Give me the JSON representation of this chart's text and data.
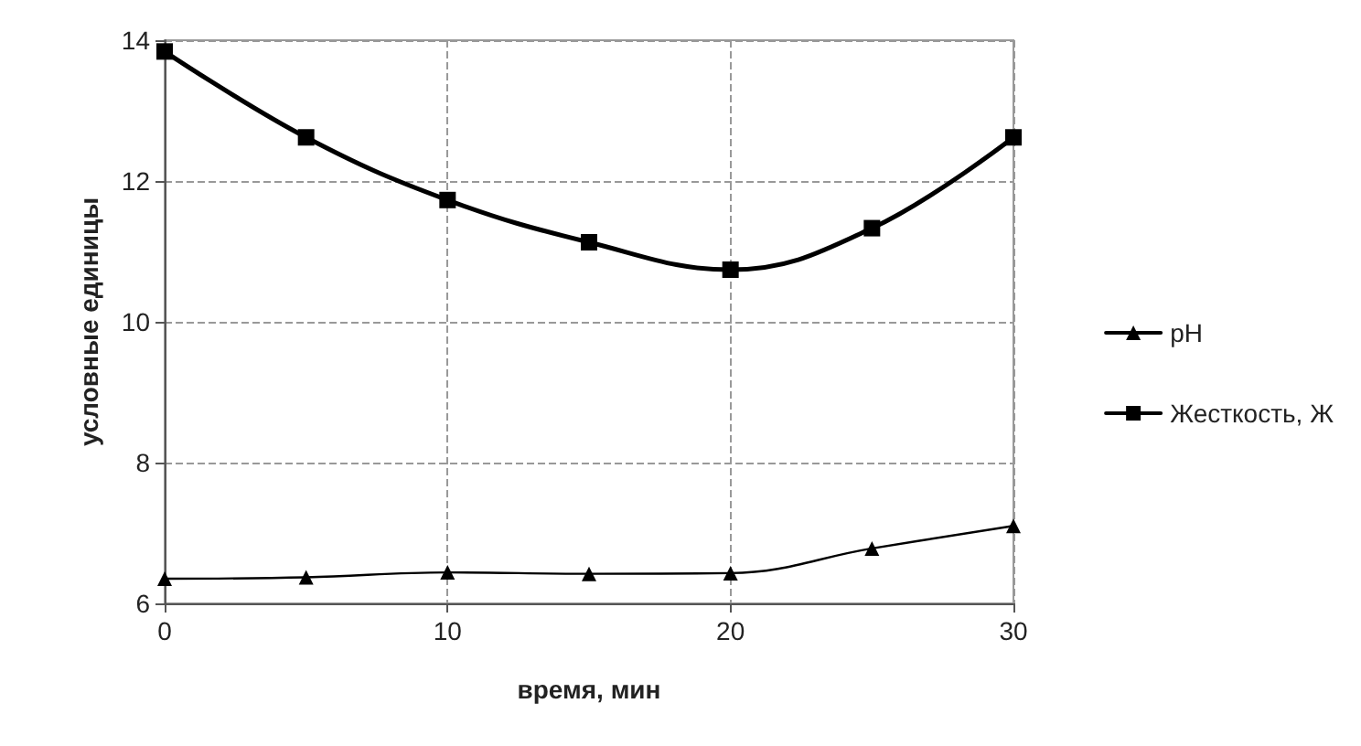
{
  "chart_data": {
    "type": "line",
    "xlabel": "время, мин",
    "ylabel": "условные единицы",
    "x": [
      0,
      5,
      10,
      15,
      20,
      25,
      30
    ],
    "series": [
      {
        "name": "pH",
        "color": "#000000",
        "marker": "triangle",
        "values": [
          6.35,
          6.37,
          6.44,
          6.42,
          6.43,
          6.78,
          7.1
        ]
      },
      {
        "name": "Жесткость, Ж",
        "color": "#000000",
        "marker": "square",
        "values": [
          13.84,
          12.62,
          11.73,
          11.13,
          10.74,
          11.33,
          12.62
        ]
      }
    ],
    "xlim": [
      0,
      30
    ],
    "xticks": [
      0,
      10,
      20,
      30
    ],
    "ylim": [
      6,
      14
    ],
    "yticks": [
      6,
      8,
      10,
      12,
      14
    ],
    "grid": true,
    "legend": "right",
    "line_style": "solid"
  }
}
